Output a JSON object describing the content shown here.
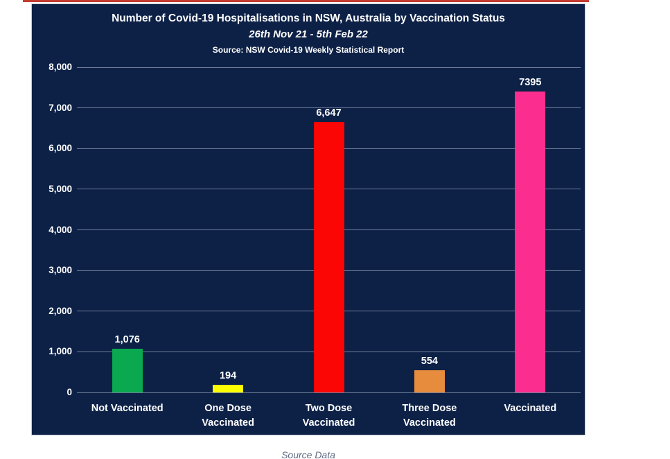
{
  "page": {
    "top_strip_color": "#c43b30",
    "panel_background": "#0d2147",
    "gridline_color": "#8590ab",
    "text_color": "#ffffff"
  },
  "chart_data": {
    "type": "bar",
    "title": "Number of Covid-19 Hospitalisations in NSW, Australia by Vaccination Status",
    "subtitle": "26th Nov 21 - 5th Feb 22",
    "source_line": "Source: NSW Covid-19 Weekly Statistical Report",
    "categories": [
      "Not Vaccinated",
      "One Dose\nVaccinated",
      "Two Dose\nVaccinated",
      "Three Dose\nVaccinated",
      "Vaccinated"
    ],
    "values": [
      1076,
      194,
      6647,
      554,
      7395
    ],
    "value_labels": [
      "1,076",
      "194",
      "6,647",
      "554",
      "7395"
    ],
    "bar_colors": [
      "#0aa84f",
      "#feff00",
      "#fb0505",
      "#e78b3d",
      "#fb2e8f"
    ],
    "xlabel": "",
    "ylabel": "",
    "ylim": [
      0,
      8000
    ],
    "ytick_step": 1000,
    "ytick_labels": [
      "0",
      "1,000",
      "2,000",
      "3,000",
      "4,000",
      "5,000",
      "6,000",
      "7,000",
      "8,000"
    ],
    "grid": true,
    "legend": false,
    "background": "#0d2147"
  },
  "footer": {
    "source_link_label": "Source Data"
  }
}
